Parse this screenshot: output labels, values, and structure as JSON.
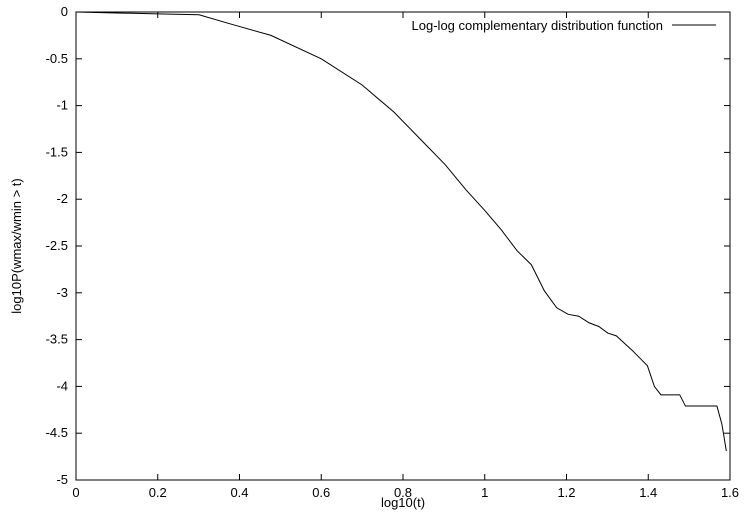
{
  "chart_data": {
    "type": "line",
    "xlabel": "log10(t)",
    "ylabel": "log10P(wmax/wmin > t)",
    "xlim": [
      0,
      1.6
    ],
    "ylim": [
      -5,
      0
    ],
    "x_ticks": [
      0,
      0.2,
      0.4,
      0.6,
      0.8,
      1,
      1.2,
      1.4,
      1.6
    ],
    "x_tick_labels": [
      "0",
      "0.2",
      "0.4",
      "0.6",
      "0.8",
      "1",
      "1.2",
      "1.4",
      "1.6"
    ],
    "y_ticks": [
      0,
      -0.5,
      -1,
      -1.5,
      -2,
      -2.5,
      -3,
      -3.5,
      -4,
      -4.5,
      -5
    ],
    "y_tick_labels": [
      "0",
      "-0.5",
      "-1",
      "-1.5",
      "-2",
      "-2.5",
      "-3",
      "-3.5",
      "-4",
      "-4.5",
      "-5"
    ],
    "grid": false,
    "legend_position": "top-right",
    "series": [
      {
        "name": "Log-log complementary distribution function",
        "color": "#000000",
        "x": [
          0,
          0.1,
          0.2,
          0.301,
          0.38,
          0.477,
          0.6,
          0.7,
          0.778,
          0.845,
          0.903,
          0.954,
          1.0,
          1.041,
          1.079,
          1.114,
          1.146,
          1.176,
          1.204,
          1.23,
          1.255,
          1.279,
          1.301,
          1.322,
          1.342,
          1.362,
          1.38,
          1.398,
          1.415,
          1.431,
          1.447,
          1.462,
          1.477,
          1.491,
          1.505,
          1.519,
          1.531,
          1.544,
          1.556,
          1.568,
          1.58,
          1.591
        ],
        "y": [
          0,
          -0.01,
          -0.02,
          -0.03,
          -0.13,
          -0.25,
          -0.5,
          -0.78,
          -1.07,
          -1.37,
          -1.63,
          -1.9,
          -2.12,
          -2.33,
          -2.55,
          -2.7,
          -2.98,
          -3.16,
          -3.23,
          -3.25,
          -3.32,
          -3.36,
          -3.43,
          -3.46,
          -3.54,
          -3.62,
          -3.7,
          -3.78,
          -4.0,
          -4.09,
          -4.09,
          -4.09,
          -4.09,
          -4.21,
          -4.21,
          -4.21,
          -4.21,
          -4.21,
          -4.21,
          -4.21,
          -4.4,
          -4.69
        ]
      }
    ]
  }
}
